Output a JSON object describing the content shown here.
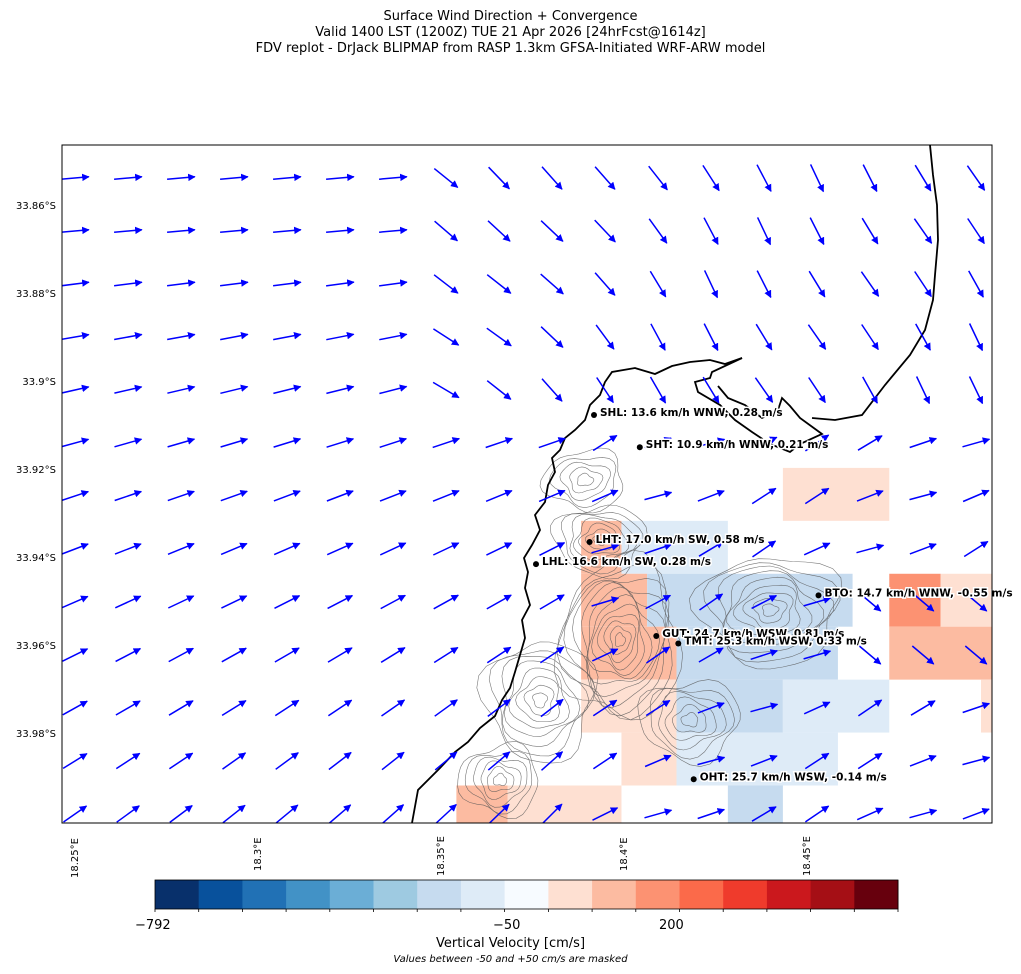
{
  "header": {
    "line1": "Surface Wind Direction + Convergence",
    "line2": "Valid 1400 LST (1200Z) TUE 21 Apr 2026 [24hrFcst@1614z]",
    "line3": "FDV replot - DrJack BLIPMAP from RASP 1.3km GFSA-Initiated WRF-ARW model"
  },
  "axes": {
    "lat_labels": [
      "33.86°S",
      "33.88°S",
      "33.9°S",
      "33.92°S",
      "33.94°S",
      "33.96°S",
      "33.98°S"
    ],
    "lon_labels": [
      "18.25°E",
      "18.3°E",
      "18.35°E",
      "18.4°E",
      "18.45°E"
    ]
  },
  "stations": [
    {
      "code": "SHL",
      "label": "SHL: 13.6 km/h WNW, 0.28 m/s",
      "lat": -33.9075,
      "lon": 18.391
    },
    {
      "code": "SHT",
      "label": "SHT: 10.9 km/h WNW, 0.21 m/s",
      "lat": -33.9148,
      "lon": 18.4035
    },
    {
      "code": "LHT",
      "label": "LHT: 17.0 km/h SW, 0.58 m/s",
      "lat": -33.9363,
      "lon": 18.3898
    },
    {
      "code": "LHL",
      "label": "LHL: 16.6 km/h SW, 0.28 m/s",
      "lat": -33.9413,
      "lon": 18.3752
    },
    {
      "code": "BTO",
      "label": "BTO: 14.7 km/h WNW, -0.55 m/s",
      "lat": -33.9484,
      "lon": 18.4522
    },
    {
      "code": "GUT",
      "label": "GUT: 24.7 km/h WSW, 0.81 m/s",
      "lat": -33.9576,
      "lon": 18.408
    },
    {
      "code": "TMT",
      "label": "TMT: 25.3 km/h WSW, 0.33 m/s",
      "lat": -33.9593,
      "lon": 18.414
    },
    {
      "code": "OHT",
      "label": "OHT: 25.7 km/h WSW, -0.14 m/s",
      "lat": -33.9901,
      "lon": 18.4182
    }
  ],
  "colorbar": {
    "label": "Vertical Velocity [cm/s]",
    "note": "Values between -50 and +50 cm/s are masked",
    "tick_labels": [
      "−792",
      "−50",
      "200"
    ],
    "colors": [
      "#08306b",
      "#08519c",
      "#2171b5",
      "#4292c6",
      "#6baed6",
      "#9ecae1",
      "#c6dbef",
      "#deebf7",
      "#f7fbff",
      "#fee0d2",
      "#fcbba1",
      "#fc9272",
      "#fb6a4a",
      "#ef3b2c",
      "#cb181d",
      "#a50f15",
      "#67000d"
    ]
  },
  "chart_data": {
    "type": "map",
    "extent": {
      "lon_min": 18.246,
      "lon_max": 18.4995,
      "lat_min": -34.0,
      "lat_max": -33.8463
    },
    "wind_vector_color": "#0000ff",
    "coastline_color": "#000000",
    "vertical_velocity_cells": [
      {
        "lon0": 18.4425,
        "lat0": -33.9195,
        "lon1": 18.4715,
        "lat1": -33.9315,
        "color": "#fee0d2"
      },
      {
        "lon0": 18.3875,
        "lat0": -33.9315,
        "lon1": 18.3985,
        "lat1": -33.9435,
        "color": "#fcbba1"
      },
      {
        "lon0": 18.3985,
        "lat0": -33.9315,
        "lon1": 18.4275,
        "lat1": -33.9435,
        "color": "#deebf7"
      },
      {
        "lon0": 18.3875,
        "lat0": -33.9435,
        "lon1": 18.4055,
        "lat1": -33.9555,
        "color": "#fcbba1"
      },
      {
        "lon0": 18.4055,
        "lat0": -33.9435,
        "lon1": 18.4615,
        "lat1": -33.9555,
        "color": "#c6dbef"
      },
      {
        "lon0": 18.4715,
        "lat0": -33.9435,
        "lon1": 18.4855,
        "lat1": -33.9555,
        "color": "#fc9272"
      },
      {
        "lon0": 18.4855,
        "lat0": -33.9435,
        "lon1": 18.4995,
        "lat1": -33.9555,
        "color": "#fee0d2"
      },
      {
        "lon0": 18.3875,
        "lat0": -33.9555,
        "lon1": 18.4135,
        "lat1": -33.9675,
        "color": "#fcbba1"
      },
      {
        "lon0": 18.4135,
        "lat0": -33.9555,
        "lon1": 18.4575,
        "lat1": -33.9675,
        "color": "#c6dbef"
      },
      {
        "lon0": 18.4715,
        "lat0": -33.9555,
        "lon1": 18.4995,
        "lat1": -33.9675,
        "color": "#fcbba1"
      },
      {
        "lon0": 18.3875,
        "lat0": -33.9675,
        "lon1": 18.4135,
        "lat1": -33.9795,
        "color": "#fee0d2"
      },
      {
        "lon0": 18.4135,
        "lat0": -33.9675,
        "lon1": 18.4425,
        "lat1": -33.9795,
        "color": "#c6dbef"
      },
      {
        "lon0": 18.4425,
        "lat0": -33.9675,
        "lon1": 18.4715,
        "lat1": -33.9795,
        "color": "#deebf7"
      },
      {
        "lon0": 18.4965,
        "lat0": -33.9675,
        "lon1": 18.4995,
        "lat1": -33.9795,
        "color": "#fee0d2"
      },
      {
        "lon0": 18.3985,
        "lat0": -33.9795,
        "lon1": 18.4135,
        "lat1": -33.9915,
        "color": "#fee0d2"
      },
      {
        "lon0": 18.4135,
        "lat0": -33.9795,
        "lon1": 18.4575,
        "lat1": -33.9915,
        "color": "#deebf7"
      },
      {
        "lon0": 18.3535,
        "lat0": -33.9915,
        "lon1": 18.3675,
        "lat1": -34.0,
        "color": "#fcbba1"
      },
      {
        "lon0": 18.3675,
        "lat0": -33.9915,
        "lon1": 18.3985,
        "lat1": -34.0,
        "color": "#fee0d2"
      },
      {
        "lon0": 18.4275,
        "lat0": -33.9915,
        "lon1": 18.4425,
        "lat1": -34.0,
        "color": "#c6dbef"
      }
    ]
  }
}
